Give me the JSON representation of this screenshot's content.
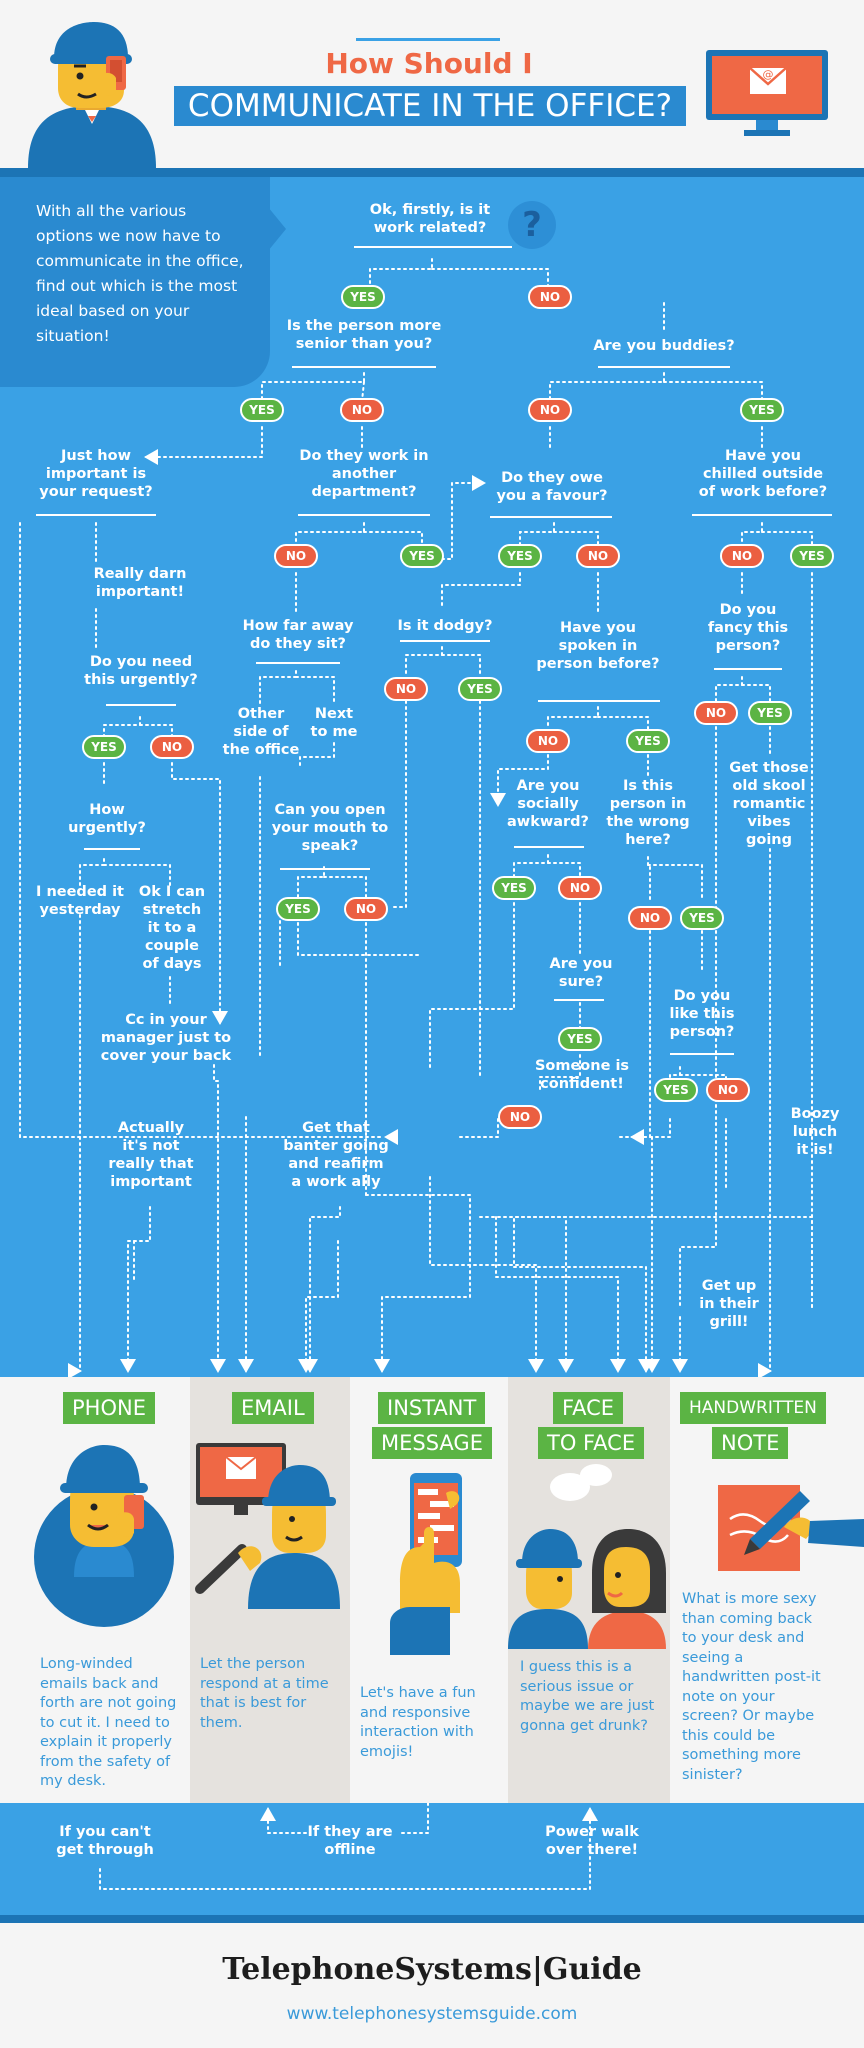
{
  "header": {
    "title_top": "How Should I",
    "title_main": "COMMUNICATE IN THE OFFICE?"
  },
  "intro": "With all the various options we now have to communicate in the office, find out which is the most ideal based on your situation!",
  "help_icon": "?",
  "colors": {
    "blue": "#3aa1e5",
    "dark_blue": "#1c74b5",
    "yes": "#5bb444",
    "no": "#eb5f41",
    "orange": "#ef6845",
    "yellow": "#f5bd33"
  },
  "flowchart": {
    "yes": "YES",
    "no": "NO",
    "q_work_related": "Ok, firstly, is it\nwork related?",
    "q_senior": "Is the person more\nsenior than you?",
    "q_buddies": "Are you buddies?",
    "q_how_important": "Just how\nimportant is\nyour request?",
    "q_other_department": "Do they work in\nanother\ndepartment?",
    "q_owe_favour": "Do they owe\nyou a favour?",
    "q_chilled": "Have you\nchilled outside\nof work before?",
    "a_really_darn": "Really darn\nimportant!",
    "q_how_far": "How far away\ndo they sit?",
    "q_dodgy": "Is it dodgy?",
    "q_spoken": "Have you\nspoken in\nperson before?",
    "q_fancy": "Do you\nfancy this\nperson?",
    "q_urgently": "Do you need\nthis urgently?",
    "a_other_side": "Other\nside of\nthe office",
    "a_next_to_me": "Next\nto me",
    "q_awkward": "Are you\nsocially\nawkward?",
    "q_wrong_here": "Is this\nperson in\nthe wrong\nhere?",
    "a_old_skool": "Get those\nold skool\nromantic\nvibes\ngoing",
    "q_how_urgently": "How\nurgently?",
    "q_open_mouth": "Can you open\nyour mouth to\nspeak?",
    "a_yesterday": "I needed it\nyesterday",
    "a_stretch": "Ok I can\nstretch\nit to a\ncouple\nof days",
    "q_sure": "Are you\nsure?",
    "q_like": "Do you\nlike this\nperson?",
    "a_cc_manager": "Cc in your\nmanager just to\ncover your back",
    "a_confident": "Someone is\nconfident!",
    "a_not_important": "Actually\nit's not\nreally that\nimportant",
    "a_banter": "Get that\nbanter going\nand reafirm\na work ally",
    "a_boozy": "Boozy\nlunch\nit is!",
    "a_grill": "Get up\nin their\ngrill!"
  },
  "options": [
    {
      "tag1": "PHONE",
      "tag2": "",
      "desc": "Long-winded emails back and forth are not going to cut it. I need to explain it properly from the safety of my desk."
    },
    {
      "tag1": "EMAIL",
      "tag2": "",
      "desc": "Let the person respond at a time that is best for them."
    },
    {
      "tag1": "INSTANT",
      "tag2": "MESSAGE",
      "desc": "Let's have a fun and responsive interaction with emojis!"
    },
    {
      "tag1": "FACE",
      "tag2": "TO FACE",
      "desc": "I guess this is a serious issue or maybe we are just gonna get drunk?"
    },
    {
      "tag1": "HANDWRITTEN",
      "tag2": "NOTE",
      "desc": "What is more sexy than coming back to your desk and seeing a handwritten post-it note on your screen? Or maybe this could be something more sinister?"
    }
  ],
  "bottom": {
    "cant_get_through": "If you can't\nget through",
    "offline": "If they are\noffline",
    "power_walk": "Power walk\nover there!"
  },
  "footer": {
    "brand": "TelephoneSystems|Guide",
    "url": "www.telephonesystemsguide.com"
  }
}
